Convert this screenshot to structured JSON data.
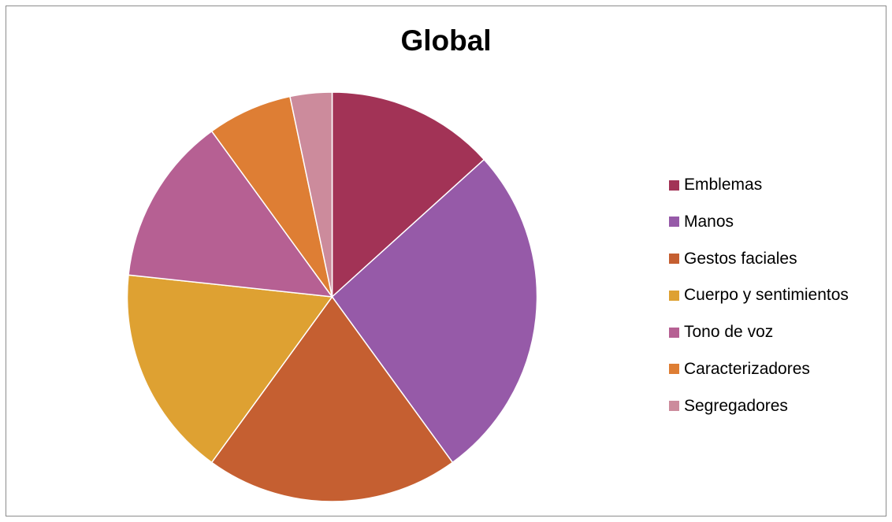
{
  "chart_data": {
    "type": "pie",
    "title": "Global",
    "legend_position": "right",
    "categories": [
      "Emblemas",
      "Manos",
      "Gestos faciales",
      "Cuerpo y sentimientos",
      "Tono de voz",
      "Caracterizadores",
      "Segregadores"
    ],
    "values": [
      13.3,
      26.7,
      20.0,
      16.7,
      13.3,
      6.7,
      3.3
    ],
    "colors": [
      "#a23356",
      "#965aa8",
      "#c55f31",
      "#dea132",
      "#b66093",
      "#de7e34",
      "#cc8b9c"
    ]
  }
}
